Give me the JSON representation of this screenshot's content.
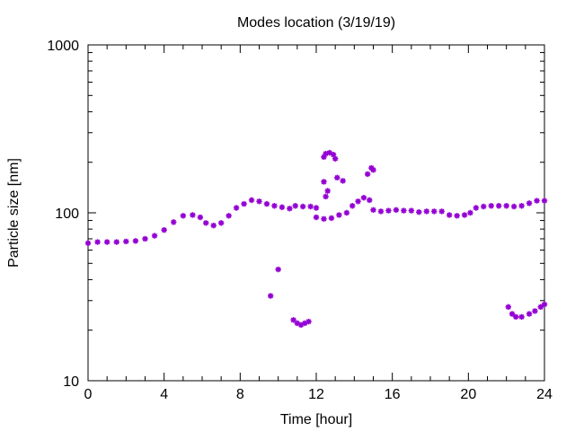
{
  "chart_data": {
    "type": "scatter",
    "title": "Modes location (3/19/19)",
    "xlabel": "Time [hour]",
    "ylabel": "Particle size [nm]",
    "xlim": [
      0,
      24
    ],
    "ylim": [
      10,
      1000
    ],
    "yscale": "log",
    "grid": false,
    "legend": "none",
    "marker_color": "#9400d3",
    "x_ticks": [
      "0",
      "4",
      "8",
      "12",
      "16",
      "20",
      "24"
    ],
    "y_ticks": [
      "10",
      "100",
      "1000"
    ],
    "series": [
      {
        "points": [
          [
            0.0,
            66
          ],
          [
            0.5,
            67
          ],
          [
            1.0,
            67
          ],
          [
            1.5,
            67
          ],
          [
            2.0,
            67.5
          ],
          [
            2.5,
            68
          ],
          [
            3.0,
            70
          ],
          [
            3.5,
            73
          ],
          [
            4.0,
            79
          ],
          [
            4.5,
            88
          ],
          [
            5.0,
            96
          ],
          [
            5.5,
            97
          ],
          [
            5.9,
            94
          ],
          [
            6.2,
            87
          ],
          [
            6.6,
            84
          ],
          [
            7.0,
            87
          ],
          [
            7.4,
            96
          ],
          [
            7.8,
            107
          ],
          [
            8.2,
            113
          ],
          [
            8.6,
            119
          ],
          [
            9.0,
            117
          ],
          [
            9.4,
            113
          ],
          [
            9.8,
            110
          ],
          [
            10.2,
            108
          ],
          [
            10.6,
            106
          ],
          [
            10.9,
            110
          ],
          [
            11.3,
            109
          ],
          [
            11.7,
            109
          ],
          [
            12.0,
            107
          ],
          [
            12.0,
            94
          ],
          [
            12.4,
            92
          ],
          [
            12.8,
            93
          ],
          [
            13.2,
            97
          ],
          [
            13.6,
            100
          ],
          [
            13.9,
            110
          ],
          [
            14.2,
            117
          ],
          [
            14.5,
            123
          ],
          [
            14.8,
            119
          ],
          [
            15.0,
            104
          ],
          [
            15.4,
            102
          ],
          [
            15.8,
            103
          ],
          [
            16.2,
            104
          ],
          [
            16.6,
            103
          ],
          [
            17.0,
            103
          ],
          [
            17.4,
            101
          ],
          [
            17.8,
            102
          ],
          [
            18.2,
            102
          ],
          [
            18.6,
            102
          ],
          [
            19.0,
            97
          ],
          [
            19.4,
            96
          ],
          [
            19.8,
            97
          ],
          [
            20.1,
            100
          ],
          [
            20.4,
            107
          ],
          [
            20.8,
            109
          ],
          [
            21.2,
            110
          ],
          [
            21.6,
            110
          ],
          [
            22.0,
            110
          ],
          [
            22.4,
            109
          ],
          [
            22.8,
            110
          ],
          [
            23.2,
            114
          ],
          [
            23.6,
            118
          ],
          [
            24.0,
            118
          ]
        ]
      },
      {
        "points": [
          [
            12.4,
            215
          ],
          [
            12.5,
            225
          ],
          [
            12.7,
            228
          ],
          [
            12.9,
            222
          ],
          [
            13.0,
            210
          ],
          [
            12.4,
            153
          ],
          [
            12.6,
            135
          ],
          [
            12.5,
            125
          ],
          [
            13.1,
            162
          ],
          [
            13.4,
            155
          ],
          [
            14.7,
            170
          ],
          [
            14.9,
            185
          ],
          [
            15.0,
            180
          ]
        ]
      },
      {
        "points": [
          [
            9.6,
            32
          ],
          [
            10.0,
            46
          ],
          [
            10.8,
            23
          ],
          [
            11.0,
            22
          ],
          [
            11.2,
            21.5
          ],
          [
            11.4,
            22
          ],
          [
            11.6,
            22.5
          ],
          [
            22.1,
            27.5
          ],
          [
            22.3,
            25
          ],
          [
            22.5,
            24
          ],
          [
            22.8,
            24
          ],
          [
            23.2,
            25
          ],
          [
            23.5,
            26
          ],
          [
            23.8,
            27.5
          ],
          [
            24.0,
            28.5
          ]
        ]
      }
    ]
  }
}
